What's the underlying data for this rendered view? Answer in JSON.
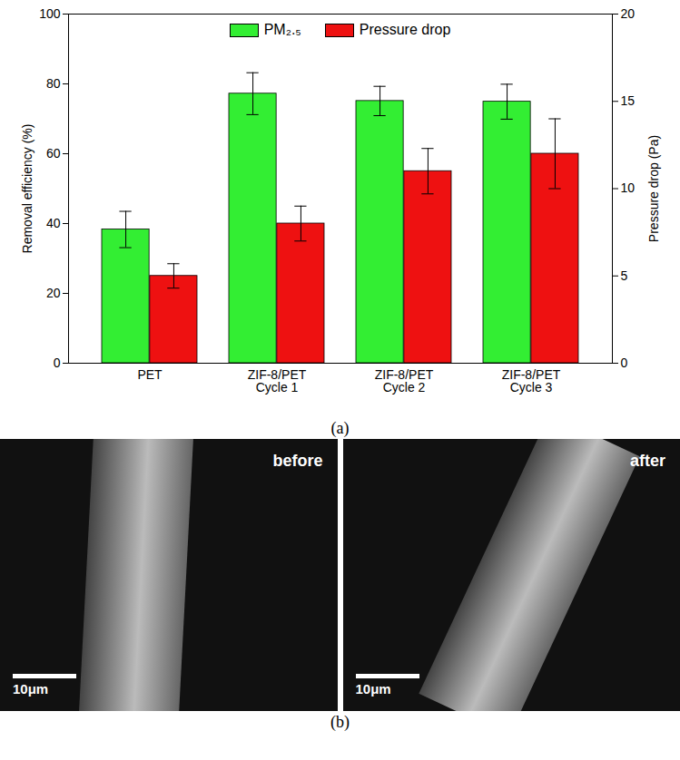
{
  "chart_data": {
    "type": "bar",
    "categories": [
      "PET",
      "ZIF-8/PET\nCycle 1",
      "ZIF-8/PET\nCycle 2",
      "ZIF-8/PET\nCycle 3"
    ],
    "series": [
      {
        "name": "PM₂.₅",
        "color": "#33ee33",
        "values": [
          38.3,
          77.2,
          75.1,
          74.9
        ],
        "errors": [
          5.2,
          6.0,
          4.2,
          5.0
        ]
      },
      {
        "name": "Pressure drop",
        "color": "#ee1111",
        "axis": "y2",
        "values": [
          5,
          8,
          11,
          12
        ],
        "errors": [
          0.7,
          1.0,
          1.3,
          2.0
        ]
      }
    ],
    "y_label": "Removal efficiency (%)",
    "y2_label": "Pressure drop (Pa)",
    "ylim": [
      0,
      100
    ],
    "yticks": [
      0,
      20,
      40,
      60,
      80,
      100
    ],
    "y2lim": [
      0,
      20
    ],
    "y2ticks": [
      0,
      5,
      10,
      15,
      20
    ],
    "legend": "top"
  },
  "panel_label": "(a)",
  "figure_b": {
    "panel_label": "(b)",
    "images": [
      {
        "label": "before",
        "scale_bar": "10μm"
      },
      {
        "label": "after",
        "scale_bar": "10μm"
      }
    ]
  }
}
